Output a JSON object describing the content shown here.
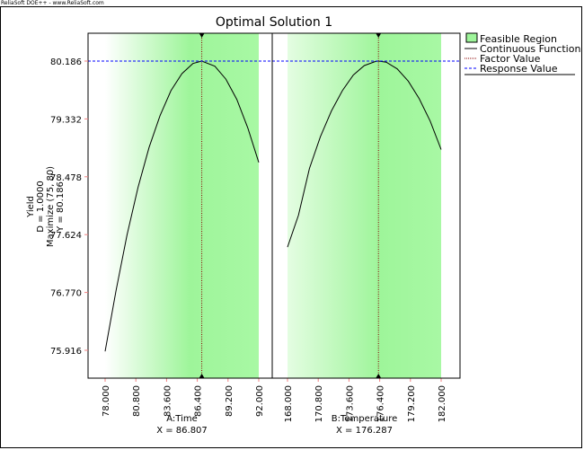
{
  "brand": "ReliaSoft DOE++ - www.ReliaSoft.com",
  "chart_data": {
    "type": "line",
    "title": "Optimal Solution 1",
    "ylabel_lines": [
      "Yield",
      "D = 1.0000",
      "Maximize (75, 80)",
      "Y = 80.186"
    ],
    "yticks": [
      "80.186",
      "79.332",
      "78.478",
      "77.624",
      "76.770",
      "75.916"
    ],
    "ylim": [
      75.5,
      80.6
    ],
    "response_value": 80.186,
    "legend": {
      "placement": "top-right",
      "items": [
        "Feasible Region",
        "Continuous Function",
        "Factor Value",
        "Response Value"
      ]
    },
    "panels": [
      {
        "xlabel": "A:Time",
        "xvalue_label": "X = 86.807",
        "factor_value": 86.807,
        "xlim": [
          78,
          92
        ],
        "xticks": [
          "78.000",
          "80.800",
          "83.600",
          "86.400",
          "89.200",
          "92.000"
        ],
        "x": [
          78,
          79,
          80,
          81,
          82,
          83,
          84,
          85,
          86,
          86.807,
          88,
          89,
          90,
          91,
          92
        ],
        "y": [
          75.9,
          76.8,
          77.62,
          78.32,
          78.91,
          79.38,
          79.75,
          80.0,
          80.15,
          80.186,
          80.11,
          79.92,
          79.62,
          79.2,
          78.69
        ]
      },
      {
        "xlabel": "B:Temperature",
        "xvalue_label": "X = 176.287",
        "factor_value": 176.287,
        "xlim": [
          168,
          182
        ],
        "xticks": [
          "168.000",
          "170.800",
          "173.600",
          "176.400",
          "179.200",
          "182.000"
        ],
        "x": [
          168,
          169,
          170,
          171,
          172,
          173,
          174,
          175,
          176,
          176.287,
          177,
          178,
          179,
          180,
          181,
          182
        ],
        "y": [
          77.44,
          77.91,
          78.6,
          79.07,
          79.45,
          79.75,
          79.98,
          80.12,
          80.18,
          80.186,
          80.17,
          80.07,
          79.89,
          79.63,
          79.3,
          78.88
        ]
      }
    ],
    "colors": {
      "feasible": "#9ef59a",
      "curve": "#000000",
      "factor": "#8b0000",
      "response": "#0000ff"
    }
  }
}
